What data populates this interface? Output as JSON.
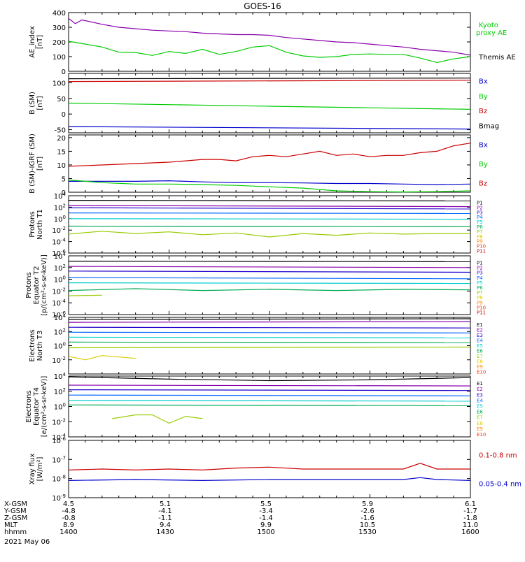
{
  "title": "GOES-16",
  "footer": {
    "date": "2021 May 06",
    "rows": [
      {
        "label": "X-GSM",
        "values": [
          "4.5",
          "5.1",
          "5.5",
          "5.9",
          "6.1"
        ]
      },
      {
        "label": "Y-GSM",
        "values": [
          "-4.8",
          "-4.1",
          "-3.4",
          "-2.6",
          "-1.7"
        ]
      },
      {
        "label": "Z-GSM",
        "values": [
          "-0.8",
          "-1.1",
          "-1.4",
          "-1.6",
          "-1.8"
        ]
      },
      {
        "label": "MLT",
        "values": [
          "8.9",
          "9.4",
          "9.9",
          "10.5",
          "11.0"
        ]
      },
      {
        "label": "hhmm",
        "values": [
          "1400",
          "1430",
          "1500",
          "1530",
          "1600"
        ]
      }
    ]
  },
  "colors": {
    "black": "#000000",
    "green": "#00cc00",
    "red": "#cc0000",
    "blue": "#0000cc",
    "p1": "#000000",
    "p2": "#8800aa",
    "p3": "#2200cc",
    "p4": "#0066ff",
    "p5": "#00cccc",
    "p6": "#00aa55",
    "p7": "#99cc00",
    "p8": "#ddcc00",
    "p9": "#ff8800",
    "p10": "#ff3300",
    "p11": "#cc0000"
  },
  "chart_data": [
    {
      "type": "line",
      "id": "ae",
      "ylabel": "AE_index\n[nT]",
      "ylim": [
        0,
        400
      ],
      "scale": "linear",
      "yticks": [
        "0",
        "100",
        "200",
        "300",
        "400"
      ],
      "series": [
        {
          "name": "Kyoto\nproxy AE",
          "color": "#00cc00",
          "x": [
            1400,
            1405,
            1410,
            1415,
            1420,
            1425,
            1430,
            1435,
            1440,
            1445,
            1450,
            1455,
            1500,
            1505,
            1510,
            1515,
            1520,
            1525,
            1530,
            1535,
            1540,
            1545,
            1550,
            1555,
            1600
          ],
          "y": [
            205,
            185,
            165,
            130,
            128,
            108,
            135,
            122,
            150,
            115,
            135,
            165,
            175,
            130,
            105,
            95,
            100,
            115,
            118,
            115,
            115,
            90,
            60,
            85,
            100
          ]
        },
        {
          "name": "Themis AE",
          "x": [
            1400,
            1402,
            1404,
            1410,
            1415,
            1420,
            1425,
            1430,
            1435,
            1440,
            1445,
            1450,
            1455,
            1500,
            1505,
            1510,
            1515,
            1520,
            1525,
            1530,
            1535,
            1540,
            1545,
            1550,
            1555,
            1600
          ],
          "y": [
            360,
            325,
            350,
            320,
            300,
            290,
            280,
            275,
            270,
            260,
            255,
            250,
            250,
            245,
            230,
            220,
            210,
            200,
            195,
            185,
            175,
            165,
            150,
            140,
            130,
            110
          ]
        }
      ]
    },
    {
      "type": "line",
      "id": "bsm",
      "ylabel": "B (SM)\n[nT]",
      "ylim": [
        -60,
        130
      ],
      "scale": "linear",
      "yticks": [
        "-50",
        "0",
        "50",
        "100"
      ],
      "yvals": [
        -50,
        0,
        50,
        100
      ],
      "series": [
        {
          "name": "Bx",
          "color": "#0000cc",
          "x": [
            1400,
            1600
          ],
          "y": [
            -40,
            -48
          ]
        },
        {
          "name": "By",
          "color": "#00cc00",
          "x": [
            1400,
            1430,
            1500,
            1530,
            1600
          ],
          "y": [
            35,
            30,
            25,
            20,
            15
          ]
        },
        {
          "name": "Bz",
          "color": "#cc0000",
          "x": [
            1400,
            1600
          ],
          "y": [
            104,
            108
          ]
        },
        {
          "name": "Bmag",
          "color": "#000000",
          "x": [
            1400,
            1600
          ],
          "y": [
            113,
            115
          ]
        }
      ]
    },
    {
      "type": "line",
      "id": "bigrf",
      "ylabel": "B (SM)-IGRF (SM)\n[nT]",
      "ylim": [
        0,
        21
      ],
      "scale": "linear",
      "yticks": [
        "0",
        "5",
        "10",
        "15",
        "20"
      ],
      "yvals": [
        0,
        5,
        10,
        15,
        20
      ],
      "series": [
        {
          "name": "Bx",
          "color": "#0000cc",
          "x": [
            1400,
            1410,
            1420,
            1430,
            1440,
            1450,
            1500,
            1510,
            1520,
            1530,
            1540,
            1550,
            1600
          ],
          "y": [
            4,
            4,
            4,
            4.2,
            3.8,
            3.5,
            3.5,
            3.4,
            3.2,
            3.2,
            3.0,
            2.8,
            3.0
          ]
        },
        {
          "name": "By",
          "color": "#00cc00",
          "x": [
            1400,
            1410,
            1420,
            1430,
            1440,
            1450,
            1500,
            1510,
            1520,
            1530,
            1540,
            1550,
            1600
          ],
          "y": [
            4.5,
            3.5,
            3,
            3,
            2.8,
            2.5,
            2,
            1.5,
            0.5,
            0.2,
            0.1,
            0.2,
            0.5
          ]
        },
        {
          "name": "Bz",
          "color": "#cc0000",
          "x": [
            1400,
            1410,
            1420,
            1430,
            1435,
            1440,
            1445,
            1450,
            1455,
            1500,
            1505,
            1510,
            1515,
            1520,
            1525,
            1530,
            1535,
            1540,
            1545,
            1550,
            1555,
            1600
          ],
          "y": [
            9.5,
            10,
            10.5,
            11,
            11.5,
            12,
            12,
            11.5,
            13,
            13.5,
            13,
            14,
            15,
            13.5,
            14,
            13,
            13.5,
            13.5,
            14.5,
            15,
            17,
            18
          ]
        }
      ]
    },
    {
      "type": "line",
      "id": "pt1",
      "ylabel": "Protons\nNorth T1",
      "ylim": [
        -6,
        4
      ],
      "scale": "log",
      "yticks": [
        "10^-6",
        "10^-4",
        "10^-2",
        "10^0",
        "10^2",
        "10^4"
      ],
      "yvals": [
        -6,
        -4,
        -2,
        0,
        2,
        4
      ],
      "series": [
        {
          "name": "P1",
          "x": [
            1400,
            1600
          ],
          "y": [
            3.2,
            3.1
          ]
        },
        {
          "name": "P2",
          "x": [
            1400,
            1600
          ],
          "y": [
            2.3,
            2.1
          ]
        },
        {
          "name": "P3",
          "x": [
            1400,
            1600
          ],
          "y": [
            1.9,
            1.7
          ]
        },
        {
          "name": "P4",
          "x": [
            1400,
            1600
          ],
          "y": [
            1.0,
            0.9
          ]
        },
        {
          "name": "P5",
          "x": [
            1400,
            1600
          ],
          "y": [
            0,
            -0.1
          ]
        },
        {
          "name": "P6",
          "x": [
            1400,
            1600
          ],
          "y": [
            -1.3,
            -1.4
          ]
        },
        {
          "name": "P7",
          "x": [
            1400,
            1410,
            1420,
            1430,
            1440,
            1450,
            1500,
            1510,
            1520,
            1530,
            1540,
            1550,
            1600
          ],
          "y": [
            -2.7,
            -2.2,
            -2.6,
            -2.3,
            -2.8,
            -2.5,
            -3.2,
            -2.6,
            -2.9,
            -2.5,
            -2.7,
            -2.6,
            -2.6
          ]
        }
      ]
    },
    {
      "type": "line",
      "id": "pt2",
      "ylabel": "Protons\nEquator T2\n[p/(cm²-s-sr-keV)]",
      "ylim": [
        -6,
        4
      ],
      "scale": "log",
      "yticks": [
        "10^-6",
        "10^-4",
        "10^-2",
        "10^0",
        "10^2",
        "10^4"
      ],
      "yvals": [
        -6,
        -4,
        -2,
        0,
        2,
        4
      ],
      "series": [
        {
          "name": "P1",
          "x": [
            1400,
            1600
          ],
          "y": [
            3.1,
            3.0
          ]
        },
        {
          "name": "P2",
          "x": [
            1400,
            1600
          ],
          "y": [
            2.2,
            2.0
          ]
        },
        {
          "name": "P3",
          "x": [
            1400,
            1600
          ],
          "y": [
            1.4,
            1.2
          ]
        },
        {
          "name": "P4",
          "x": [
            1400,
            1600
          ],
          "y": [
            0.3,
            0.1
          ]
        },
        {
          "name": "P5",
          "x": [
            1400,
            1600
          ],
          "y": [
            -0.6,
            -0.7
          ]
        },
        {
          "name": "P6",
          "x": [
            1400,
            1420,
            1440,
            1500,
            1520,
            1540,
            1600
          ],
          "y": [
            -1.9,
            -1.6,
            -1.9,
            -1.7,
            -1.9,
            -1.7,
            -1.8
          ]
        },
        {
          "name": "P7",
          "x": [
            1400,
            1410
          ],
          "y": [
            -2.8,
            -2.7
          ]
        }
      ]
    },
    {
      "type": "line",
      "id": "et3",
      "ylabel": "Electrons\nNorth T3",
      "ylim": [
        -4,
        4
      ],
      "scale": "log",
      "yticks": [
        "10^-2",
        "10^0",
        "10^2",
        "10^4"
      ],
      "yvals": [
        -2,
        0,
        2,
        4
      ],
      "series": [
        {
          "name": "E1",
          "x": [
            1400,
            1600
          ],
          "y": [
            3.7,
            3.8
          ]
        },
        {
          "name": "E2",
          "x": [
            1400,
            1600
          ],
          "y": [
            3.3,
            3.4
          ]
        },
        {
          "name": "E3",
          "x": [
            1400,
            1600
          ],
          "y": [
            2.6,
            2.5
          ]
        },
        {
          "name": "E4",
          "x": [
            1400,
            1600
          ],
          "y": [
            1.9,
            1.8
          ]
        },
        {
          "name": "E5",
          "x": [
            1400,
            1600
          ],
          "y": [
            1.2,
            1.1
          ]
        },
        {
          "name": "E6",
          "x": [
            1400,
            1600
          ],
          "y": [
            0.5,
            0.4
          ]
        },
        {
          "name": "E8",
          "x": [
            1400,
            1600
          ],
          "y": [
            -0.3,
            -0.2
          ]
        },
        {
          "name": "E9",
          "x": [
            1400,
            1405,
            1410,
            1420
          ],
          "y": [
            -1.5,
            -2.0,
            -1.4,
            -1.8
          ]
        }
      ]
    },
    {
      "type": "line",
      "id": "et4",
      "ylabel": "Electrons\nEquator T4\n[e/(cm²-s-sr-keV)]",
      "ylim": [
        -4,
        4
      ],
      "scale": "log",
      "yticks": [
        "10^-4",
        "10^-2",
        "10^0",
        "10^2",
        "10^4"
      ],
      "yvals": [
        -4,
        -2,
        0,
        2,
        4
      ],
      "series": [
        {
          "name": "E1",
          "x": [
            1400,
            1430,
            1500,
            1530,
            1600
          ],
          "y": [
            3.9,
            3.6,
            3.4,
            3.5,
            3.8
          ]
        },
        {
          "name": "E2",
          "x": [
            1400,
            1600
          ],
          "y": [
            2.8,
            2.7
          ]
        },
        {
          "name": "E3",
          "x": [
            1400,
            1600
          ],
          "y": [
            2.2,
            2.1
          ]
        },
        {
          "name": "E4",
          "x": [
            1400,
            1600
          ],
          "y": [
            1.5,
            1.4
          ]
        },
        {
          "name": "E5",
          "x": [
            1400,
            1600
          ],
          "y": [
            0.8,
            0.7
          ]
        },
        {
          "name": "E6",
          "x": [
            1400,
            1600
          ],
          "y": [
            0.2,
            0.1
          ]
        },
        {
          "name": "E8",
          "x": [
            1413,
            1420,
            1425,
            1430,
            1435,
            1440
          ],
          "y": [
            -1.6,
            -1.1,
            -1.1,
            -2.2,
            -1.3,
            -1.6
          ]
        }
      ]
    },
    {
      "type": "line",
      "id": "xray",
      "ylabel": "Xray flux\n[W/m²]",
      "ylim": [
        -9,
        -6
      ],
      "scale": "log",
      "yticks": [
        "10^-9",
        "10^-8",
        "10^-7",
        "10^-6"
      ],
      "yvals": [
        -9,
        -8,
        -7,
        -6
      ],
      "series": [
        {
          "name": "0.1-0.8 nm",
          "color": "#cc0000",
          "x": [
            1400,
            1410,
            1420,
            1430,
            1440,
            1450,
            1500,
            1510,
            1520,
            1530,
            1540,
            1545,
            1550,
            1600
          ],
          "y": [
            -7.55,
            -7.5,
            -7.55,
            -7.5,
            -7.55,
            -7.45,
            -7.4,
            -7.5,
            -7.5,
            -7.5,
            -7.5,
            -7.2,
            -7.5,
            -7.5
          ]
        },
        {
          "name": "0.05-0.4 nm",
          "color": "#0000cc",
          "x": [
            1400,
            1420,
            1440,
            1500,
            1520,
            1540,
            1545,
            1550,
            1600
          ],
          "y": [
            -8.1,
            -8.05,
            -8.1,
            -8.05,
            -8.05,
            -8.05,
            -7.95,
            -8.05,
            -8.1
          ]
        }
      ]
    }
  ],
  "legends": {
    "ae": [
      {
        "text": "Kyoto proxy AE",
        "color": "#00cc00"
      },
      {
        "text": "Themis AE",
        "color": "#000000"
      }
    ],
    "bsm": [
      {
        "text": "Bx",
        "color": "#0000cc"
      },
      {
        "text": "By",
        "color": "#00cc00"
      },
      {
        "text": "Bz",
        "color": "#cc0000"
      },
      {
        "text": "Bmag",
        "color": "#000000"
      }
    ],
    "bigrf": [
      {
        "text": "Bx",
        "color": "#0000cc"
      },
      {
        "text": "By",
        "color": "#00cc00"
      },
      {
        "text": "Bz",
        "color": "#cc0000"
      }
    ],
    "pt1": [
      "P1",
      "P2",
      "P3",
      "P4",
      "P5",
      "P6",
      "P7",
      "P8",
      "P9",
      "P10",
      "P11"
    ],
    "pt2": [
      "P1",
      "P2",
      "P3",
      "P4",
      "P5",
      "P6",
      "P7",
      "P8",
      "P9",
      "P10",
      "P11"
    ],
    "et3": [
      "E1",
      "E2",
      "E3",
      "E4",
      "E5",
      "E6",
      "E7",
      "E8",
      "E9",
      "E10"
    ],
    "et4": [
      "E1",
      "E2",
      "E3",
      "E4",
      "E5",
      "E6",
      "E7",
      "E8",
      "E9",
      "E10"
    ],
    "xray": [
      {
        "text": "0.1-0.8 nm",
        "color": "#cc0000"
      },
      {
        "text": "0.05-0.4 nm",
        "color": "#0000cc"
      }
    ]
  },
  "legend_palette": [
    "#000000",
    "#8800aa",
    "#2200cc",
    "#0066ff",
    "#00cccc",
    "#00aa55",
    "#99cc00",
    "#ddcc00",
    "#ff8800",
    "#ff3300",
    "#cc0000"
  ]
}
